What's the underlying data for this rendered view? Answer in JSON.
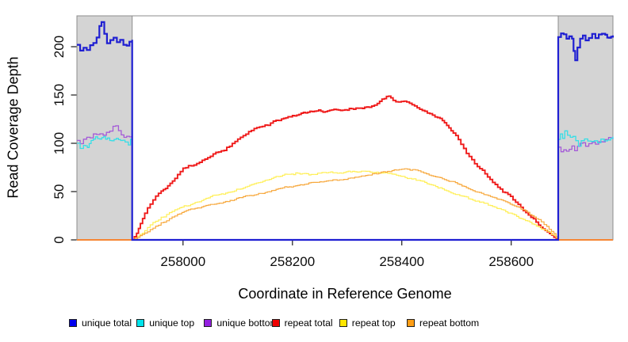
{
  "chart_data": {
    "type": "line",
    "title": "",
    "xlabel": "Coordinate in Reference Genome",
    "ylabel": "Read Coverage Depth",
    "xlim": [
      257806,
      258786
    ],
    "ylim": [
      0,
      232
    ],
    "xticks": [
      258000,
      258200,
      258400,
      258600
    ],
    "yticks": [
      0,
      50,
      100,
      150,
      200
    ],
    "grid": false,
    "legend_position": "bottom",
    "unique_region_shading": {
      "fill": "#d4d4d4",
      "border": "#8c8c8c",
      "regions": [
        [
          257806,
          257907
        ],
        [
          258686,
          258786
        ]
      ]
    },
    "legend_order": [
      "unique-total",
      "unique-top",
      "unique-bottom",
      "repeat-total",
      "repeat-top",
      "repeat-bottom"
    ],
    "series": [
      {
        "id": "repeat-total",
        "label": "repeat total",
        "color": "#ef1a1a",
        "legend_color": "#ee0000",
        "width": 1.9,
        "amp": 1.6,
        "step": 4.3,
        "seed": 41,
        "points": [
          [
            257806,
            0
          ],
          [
            257907,
            0
          ],
          [
            257915,
            6
          ],
          [
            257922,
            15
          ],
          [
            257930,
            26
          ],
          [
            257940,
            36
          ],
          [
            257950,
            44
          ],
          [
            257960,
            50
          ],
          [
            257972,
            56
          ],
          [
            257985,
            64
          ],
          [
            258000,
            74
          ],
          [
            258015,
            77
          ],
          [
            258030,
            81
          ],
          [
            258045,
            85
          ],
          [
            258060,
            89
          ],
          [
            258075,
            93
          ],
          [
            258090,
            99
          ],
          [
            258105,
            105
          ],
          [
            258120,
            110
          ],
          [
            258135,
            114
          ],
          [
            258150,
            117
          ],
          [
            258165,
            120
          ],
          [
            258180,
            123
          ],
          [
            258200,
            127
          ],
          [
            258220,
            129
          ],
          [
            258240,
            131
          ],
          [
            258260,
            132
          ],
          [
            258280,
            134
          ],
          [
            258300,
            136
          ],
          [
            258320,
            138
          ],
          [
            258340,
            139
          ],
          [
            258355,
            142
          ],
          [
            258368,
            146
          ],
          [
            258376,
            148
          ],
          [
            258384,
            144
          ],
          [
            258394,
            142
          ],
          [
            258404,
            143
          ],
          [
            258414,
            141
          ],
          [
            258428,
            138
          ],
          [
            258442,
            134
          ],
          [
            258456,
            130
          ],
          [
            258470,
            126
          ],
          [
            258482,
            121
          ],
          [
            258494,
            113
          ],
          [
            258508,
            101
          ],
          [
            258523,
            88
          ],
          [
            258538,
            79
          ],
          [
            258552,
            71
          ],
          [
            258566,
            62
          ],
          [
            258580,
            54
          ],
          [
            258594,
            48
          ],
          [
            258608,
            41
          ],
          [
            258622,
            32
          ],
          [
            258636,
            24
          ],
          [
            258650,
            16
          ],
          [
            258662,
            10
          ],
          [
            258674,
            5
          ],
          [
            258686,
            0
          ],
          [
            258786,
            0
          ]
        ]
      },
      {
        "id": "repeat-top",
        "label": "repeat top",
        "color": "#ffef55",
        "legend_color": "#ffe600",
        "width": 1.2,
        "amp": 1.3,
        "step": 4.3,
        "seed": 52,
        "points": [
          [
            257806,
            0
          ],
          [
            257907,
            0
          ],
          [
            257917,
            4
          ],
          [
            257930,
            10
          ],
          [
            257945,
            18
          ],
          [
            257960,
            24
          ],
          [
            257975,
            28
          ],
          [
            257990,
            33
          ],
          [
            258010,
            37
          ],
          [
            258030,
            42
          ],
          [
            258050,
            46
          ],
          [
            258070,
            48
          ],
          [
            258090,
            50
          ],
          [
            258110,
            54
          ],
          [
            258130,
            58
          ],
          [
            258150,
            62
          ],
          [
            258170,
            65
          ],
          [
            258190,
            68
          ],
          [
            258210,
            70
          ],
          [
            258230,
            69
          ],
          [
            258250,
            71
          ],
          [
            258270,
            72
          ],
          [
            258290,
            71
          ],
          [
            258310,
            72
          ],
          [
            258330,
            73
          ],
          [
            258350,
            72
          ],
          [
            258370,
            71
          ],
          [
            258390,
            69
          ],
          [
            258410,
            65
          ],
          [
            258430,
            62
          ],
          [
            258450,
            58
          ],
          [
            258470,
            54
          ],
          [
            258490,
            50
          ],
          [
            258510,
            46
          ],
          [
            258530,
            41
          ],
          [
            258550,
            38
          ],
          [
            258570,
            34
          ],
          [
            258590,
            30
          ],
          [
            258610,
            26
          ],
          [
            258630,
            21
          ],
          [
            258650,
            15
          ],
          [
            258665,
            10
          ],
          [
            258678,
            5
          ],
          [
            258686,
            0
          ],
          [
            258786,
            0
          ]
        ]
      },
      {
        "id": "repeat-bottom",
        "label": "repeat bottom",
        "color": "#f7a83c",
        "legend_color": "#ff9d14",
        "width": 1.2,
        "amp": 1.1,
        "step": 4.3,
        "seed": 63,
        "points": [
          [
            257806,
            0
          ],
          [
            257907,
            0
          ],
          [
            257917,
            3
          ],
          [
            257930,
            8
          ],
          [
            257945,
            14
          ],
          [
            257960,
            19
          ],
          [
            257975,
            23
          ],
          [
            257990,
            27
          ],
          [
            258010,
            30
          ],
          [
            258030,
            33
          ],
          [
            258050,
            36
          ],
          [
            258070,
            38
          ],
          [
            258090,
            40
          ],
          [
            258110,
            43
          ],
          [
            258130,
            46
          ],
          [
            258150,
            49
          ],
          [
            258170,
            52
          ],
          [
            258190,
            55
          ],
          [
            258210,
            57
          ],
          [
            258230,
            60
          ],
          [
            258250,
            62
          ],
          [
            258270,
            63
          ],
          [
            258290,
            64
          ],
          [
            258310,
            66
          ],
          [
            258330,
            68
          ],
          [
            258350,
            70
          ],
          [
            258370,
            72
          ],
          [
            258390,
            74
          ],
          [
            258405,
            75
          ],
          [
            258420,
            74
          ],
          [
            258435,
            72
          ],
          [
            258450,
            69
          ],
          [
            258470,
            65
          ],
          [
            258490,
            61
          ],
          [
            258510,
            57
          ],
          [
            258530,
            52
          ],
          [
            258550,
            48
          ],
          [
            258570,
            44
          ],
          [
            258590,
            40
          ],
          [
            258610,
            35
          ],
          [
            258630,
            29
          ],
          [
            258650,
            21
          ],
          [
            258665,
            14
          ],
          [
            258678,
            7
          ],
          [
            258686,
            0
          ],
          [
            258786,
            0
          ]
        ]
      },
      {
        "id": "unique-bottom",
        "label": "unique bottom",
        "color": "#a45ad8",
        "legend_color": "#9420e0",
        "width": 1.3,
        "amp": 2.2,
        "step": 4.3,
        "seed": 74,
        "points": [
          [
            257806,
            103
          ],
          [
            257812,
            100
          ],
          [
            257818,
            104
          ],
          [
            257824,
            106
          ],
          [
            257830,
            105
          ],
          [
            257836,
            107
          ],
          [
            257842,
            106
          ],
          [
            257848,
            108
          ],
          [
            257854,
            107
          ],
          [
            257860,
            109
          ],
          [
            257866,
            111
          ],
          [
            257872,
            116
          ],
          [
            257877,
            117
          ],
          [
            257882,
            112
          ],
          [
            257887,
            107
          ],
          [
            257892,
            105
          ],
          [
            257897,
            104
          ],
          [
            257902,
            103
          ],
          [
            257907,
            100
          ],
          [
            257907,
            0
          ],
          [
            258686,
            0
          ],
          [
            258686,
            96
          ],
          [
            258691,
            93
          ],
          [
            258696,
            95
          ],
          [
            258701,
            94
          ],
          [
            258706,
            97
          ],
          [
            258711,
            99
          ],
          [
            258716,
            95
          ],
          [
            258721,
            100
          ],
          [
            258726,
            102
          ],
          [
            258731,
            103
          ],
          [
            258736,
            101
          ],
          [
            258742,
            103
          ],
          [
            258748,
            104
          ],
          [
            258754,
            103
          ],
          [
            258760,
            105
          ],
          [
            258766,
            104
          ],
          [
            258772,
            106
          ],
          [
            258778,
            107
          ],
          [
            258786,
            106
          ]
        ]
      },
      {
        "id": "unique-top",
        "label": "unique top",
        "color": "#37dee6",
        "legend_color": "#00e4ec",
        "width": 1.3,
        "amp": 2.2,
        "step": 4.3,
        "seed": 85,
        "points": [
          [
            257806,
            100
          ],
          [
            257812,
            95
          ],
          [
            257818,
            98
          ],
          [
            257825,
            96
          ],
          [
            257832,
            101
          ],
          [
            257840,
            104
          ],
          [
            257848,
            102
          ],
          [
            257855,
            105
          ],
          [
            257862,
            103
          ],
          [
            257870,
            101
          ],
          [
            257878,
            102
          ],
          [
            257886,
            100
          ],
          [
            257894,
            99
          ],
          [
            257900,
            97
          ],
          [
            257904,
            104
          ],
          [
            257907,
            112
          ],
          [
            257907,
            0
          ],
          [
            258686,
            0
          ],
          [
            258686,
            104
          ],
          [
            258690,
            110
          ],
          [
            258694,
            106
          ],
          [
            258698,
            112
          ],
          [
            258703,
            108
          ],
          [
            258708,
            105
          ],
          [
            258713,
            107
          ],
          [
            258718,
            103
          ],
          [
            258723,
            97
          ],
          [
            258728,
            104
          ],
          [
            258734,
            106
          ],
          [
            258740,
            104
          ],
          [
            258746,
            103
          ],
          [
            258752,
            105
          ],
          [
            258758,
            104
          ],
          [
            258764,
            106
          ],
          [
            258770,
            104
          ],
          [
            258776,
            103
          ],
          [
            258782,
            104
          ],
          [
            258786,
            106
          ]
        ]
      },
      {
        "id": "unique-total",
        "label": "unique total",
        "color": "#1f1fd2",
        "legend_color": "#0000ee",
        "width": 2.2,
        "amp": 2.6,
        "step": 4.3,
        "seed": 96,
        "points": [
          [
            257806,
            202
          ],
          [
            257812,
            198
          ],
          [
            257818,
            200
          ],
          [
            257824,
            197
          ],
          [
            257830,
            202
          ],
          [
            257836,
            206
          ],
          [
            257842,
            212
          ],
          [
            257847,
            222
          ],
          [
            257851,
            225
          ],
          [
            257856,
            215
          ],
          [
            257861,
            206
          ],
          [
            257867,
            209
          ],
          [
            257873,
            212
          ],
          [
            257879,
            207
          ],
          [
            257885,
            209
          ],
          [
            257891,
            204
          ],
          [
            257897,
            203
          ],
          [
            257902,
            209
          ],
          [
            257907,
            211
          ],
          [
            257907,
            0
          ],
          [
            258686,
            0
          ],
          [
            258686,
            210
          ],
          [
            258691,
            214
          ],
          [
            258696,
            212
          ],
          [
            258701,
            207
          ],
          [
            258706,
            211
          ],
          [
            258711,
            209
          ],
          [
            258714,
            196
          ],
          [
            258717,
            186
          ],
          [
            258721,
            199
          ],
          [
            258726,
            208
          ],
          [
            258731,
            212
          ],
          [
            258736,
            207
          ],
          [
            258742,
            210
          ],
          [
            258748,
            214
          ],
          [
            258754,
            209
          ],
          [
            258760,
            212
          ],
          [
            258766,
            214
          ],
          [
            258772,
            211
          ],
          [
            258779,
            210
          ],
          [
            258786,
            212
          ]
        ]
      }
    ]
  }
}
